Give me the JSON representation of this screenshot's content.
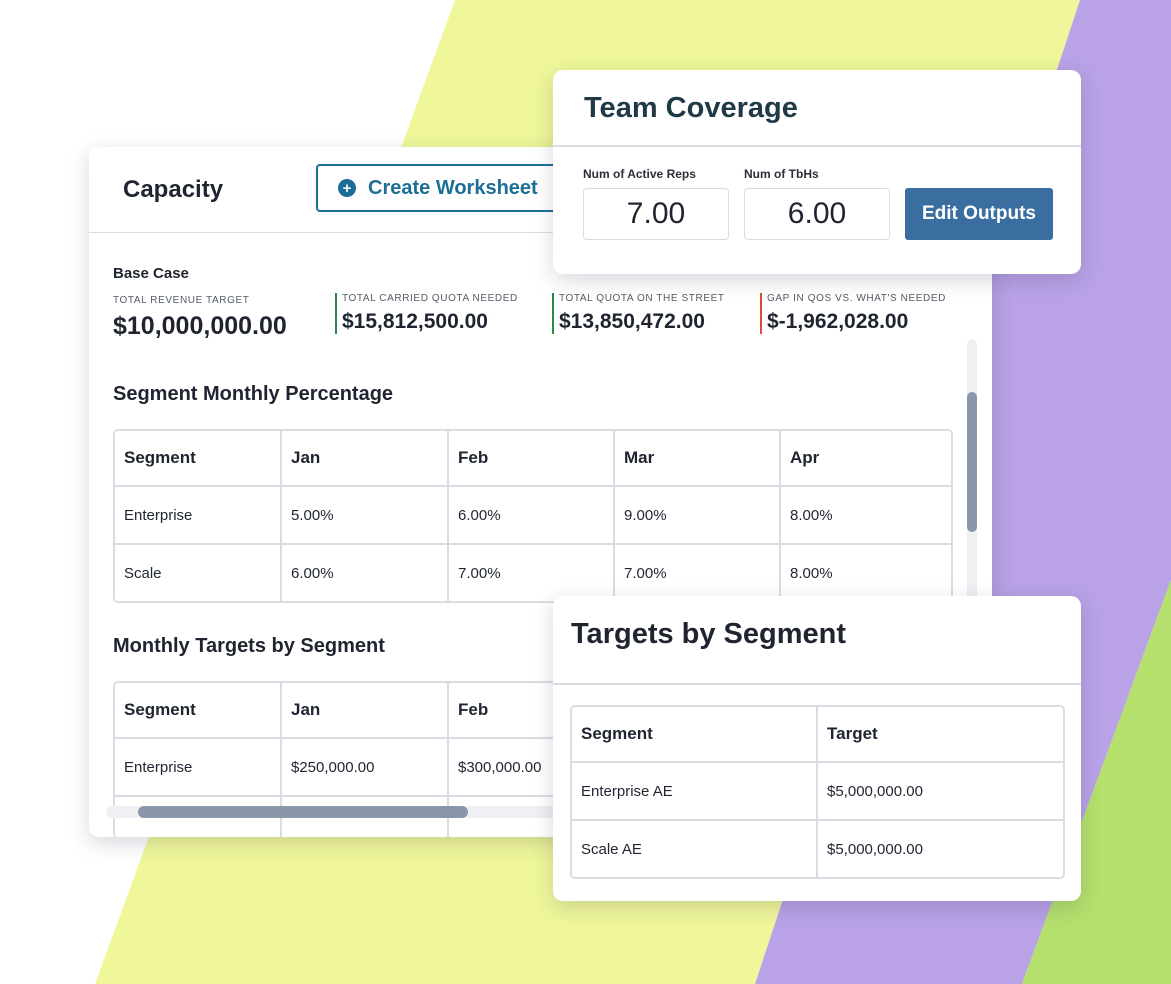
{
  "background": {
    "white": "#ffffff",
    "lime": "#eff79a",
    "lavender": "#b9a2e6",
    "green": "#b5e06d"
  },
  "capacity": {
    "title": "Capacity",
    "create_button": {
      "label": "Create Worksheet",
      "icon": "plus-circle-icon"
    },
    "base_case": "Base Case",
    "metrics": [
      {
        "label": "TOTAL REVENUE TARGET",
        "value": "$10,000,000.00"
      },
      {
        "label": "TOTAL CARRIED QUOTA NEEDED",
        "value": "$15,812,500.00"
      },
      {
        "label": "TOTAL QUOTA ON THE STREET",
        "value": "$13,850,472.00"
      },
      {
        "label": "GAP IN QOS VS. WHAT'S NEEDED",
        "value": "$-1,962,028.00"
      }
    ],
    "segment_pct": {
      "title": "Segment Monthly Percentage",
      "headers": [
        "Segment",
        "Jan",
        "Feb",
        "Mar",
        "Apr"
      ],
      "rows": [
        [
          "Enterprise",
          "5.00%",
          "6.00%",
          "9.00%",
          "8.00%"
        ],
        [
          "Scale",
          "6.00%",
          "7.00%",
          "7.00%",
          "8.00%"
        ]
      ]
    },
    "monthly_targets": {
      "title": "Monthly Targets by Segment",
      "headers": [
        "Segment",
        "Jan",
        "Feb"
      ],
      "rows": [
        [
          "Enterprise",
          "$250,000.00",
          "$300,000.00"
        ]
      ]
    }
  },
  "team_coverage": {
    "title": "Team Coverage",
    "active_reps_label": "Num of Active Reps",
    "active_reps_value": "7.00",
    "tbh_label": "Num of TbHs",
    "tbh_value": "6.00",
    "edit_button": "Edit Outputs"
  },
  "targets_by_segment": {
    "title": "Targets by Segment",
    "headers": [
      "Segment",
      "Target"
    ],
    "rows": [
      [
        "Enterprise AE",
        "$5,000,000.00"
      ],
      [
        "Scale AE",
        "$5,000,000.00"
      ]
    ]
  }
}
